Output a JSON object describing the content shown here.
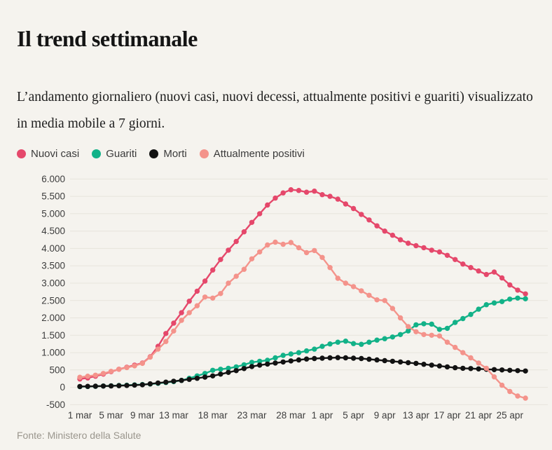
{
  "page": {
    "title": "Il trend settimanale",
    "subtitle": "L’andamento giornaliero (nuovi casi, nuovi decessi, attualmente positivi e guariti) visualizzato in media mobile a 7 giorni.",
    "source": "Fonte: Ministero della Salute"
  },
  "colors": {
    "background": "#f5f3ee",
    "grid": "#e7e4dc",
    "axis_text": "#3d3d3d",
    "nuovi_casi": "#e5486b",
    "guariti": "#12b288",
    "morti": "#121212",
    "attualmente_positivi": "#f4938b"
  },
  "legend": [
    {
      "label": "Nuovi casi",
      "color": "#e5486b"
    },
    {
      "label": "Guariti",
      "color": "#12b288"
    },
    {
      "label": "Morti",
      "color": "#121212"
    },
    {
      "label": "Attualmente positivi",
      "color": "#f4938b"
    }
  ],
  "chart_data": {
    "type": "line",
    "title": "Il trend settimanale",
    "x_start_date": "1 mar",
    "x_end_date": "27 apr",
    "n_days": 58,
    "ylim": [
      -500,
      6000
    ],
    "grid": true,
    "legend_position": "top",
    "y_tick_values": [
      6000,
      5500,
      5000,
      4500,
      4000,
      3500,
      3000,
      2500,
      2000,
      1500,
      1000,
      500,
      0,
      -500
    ],
    "y_tick_labels": [
      "6.000",
      "5.500",
      "5.000",
      "4.500",
      "4.000",
      "3.500",
      "3.000",
      "2.500",
      "2.000",
      "1.500",
      "1.000",
      "500",
      "0",
      "-500"
    ],
    "x_ticks": [
      {
        "day": 0,
        "label": "1 mar"
      },
      {
        "day": 4,
        "label": "5 mar"
      },
      {
        "day": 8,
        "label": "9 mar"
      },
      {
        "day": 12,
        "label": "13 mar"
      },
      {
        "day": 17,
        "label": "18 mar"
      },
      {
        "day": 22,
        "label": "23 mar"
      },
      {
        "day": 27,
        "label": "28 mar"
      },
      {
        "day": 31,
        "label": "1 apr"
      },
      {
        "day": 35,
        "label": "5 apr"
      },
      {
        "day": 39,
        "label": "9 apr"
      },
      {
        "day": 43,
        "label": "13 apr"
      },
      {
        "day": 47,
        "label": "17 apr"
      },
      {
        "day": 51,
        "label": "21 apr"
      },
      {
        "day": 55,
        "label": "25 apr"
      }
    ],
    "series": [
      {
        "name": "Nuovi casi",
        "key": "nuovi-casi",
        "color": "#e5486b",
        "values": [
          240,
          270,
          320,
          380,
          450,
          520,
          580,
          640,
          700,
          880,
          1180,
          1550,
          1850,
          2150,
          2480,
          2770,
          3060,
          3380,
          3680,
          3950,
          4200,
          4480,
          4750,
          5000,
          5250,
          5450,
          5600,
          5690,
          5670,
          5620,
          5650,
          5550,
          5500,
          5420,
          5280,
          5150,
          4980,
          4820,
          4650,
          4500,
          4380,
          4250,
          4150,
          4080,
          4020,
          3950,
          3900,
          3800,
          3680,
          3550,
          3450,
          3350,
          3250,
          3320,
          3150,
          2950,
          2800,
          2690
        ]
      },
      {
        "name": "Guariti",
        "key": "guariti",
        "color": "#12b288",
        "values": [
          20,
          25,
          30,
          38,
          45,
          52,
          60,
          70,
          80,
          95,
          115,
          140,
          165,
          200,
          260,
          330,
          400,
          490,
          520,
          550,
          590,
          650,
          720,
          750,
          780,
          850,
          920,
          960,
          1000,
          1050,
          1100,
          1180,
          1250,
          1300,
          1330,
          1260,
          1240,
          1300,
          1360,
          1400,
          1450,
          1520,
          1625,
          1800,
          1830,
          1820,
          1670,
          1700,
          1870,
          1980,
          2100,
          2250,
          2380,
          2430,
          2470,
          2540,
          2570,
          2550
        ]
      },
      {
        "name": "Morti",
        "key": "morti",
        "color": "#121212",
        "values": [
          25,
          28,
          32,
          36,
          40,
          48,
          55,
          65,
          75,
          100,
          125,
          150,
          175,
          200,
          230,
          260,
          295,
          330,
          380,
          430,
          480,
          540,
          600,
          640,
          670,
          700,
          730,
          760,
          790,
          815,
          830,
          840,
          850,
          855,
          850,
          840,
          830,
          810,
          790,
          770,
          750,
          730,
          710,
          690,
          665,
          640,
          615,
          590,
          565,
          550,
          540,
          530,
          520,
          510,
          500,
          490,
          480,
          470
        ]
      },
      {
        "name": "Attualmente positivi",
        "key": "attualmente-positivi",
        "color": "#f4938b",
        "values": [
          290,
          320,
          350,
          400,
          460,
          520,
          570,
          620,
          690,
          870,
          1100,
          1320,
          1620,
          1930,
          2150,
          2350,
          2600,
          2570,
          2700,
          3000,
          3200,
          3400,
          3700,
          3900,
          4100,
          4180,
          4120,
          4170,
          4020,
          3880,
          3940,
          3740,
          3450,
          3140,
          3000,
          2900,
          2780,
          2650,
          2520,
          2500,
          2270,
          2000,
          1750,
          1600,
          1520,
          1500,
          1480,
          1300,
          1150,
          1000,
          850,
          700,
          550,
          300,
          60,
          -120,
          -250,
          -310
        ]
      }
    ]
  }
}
